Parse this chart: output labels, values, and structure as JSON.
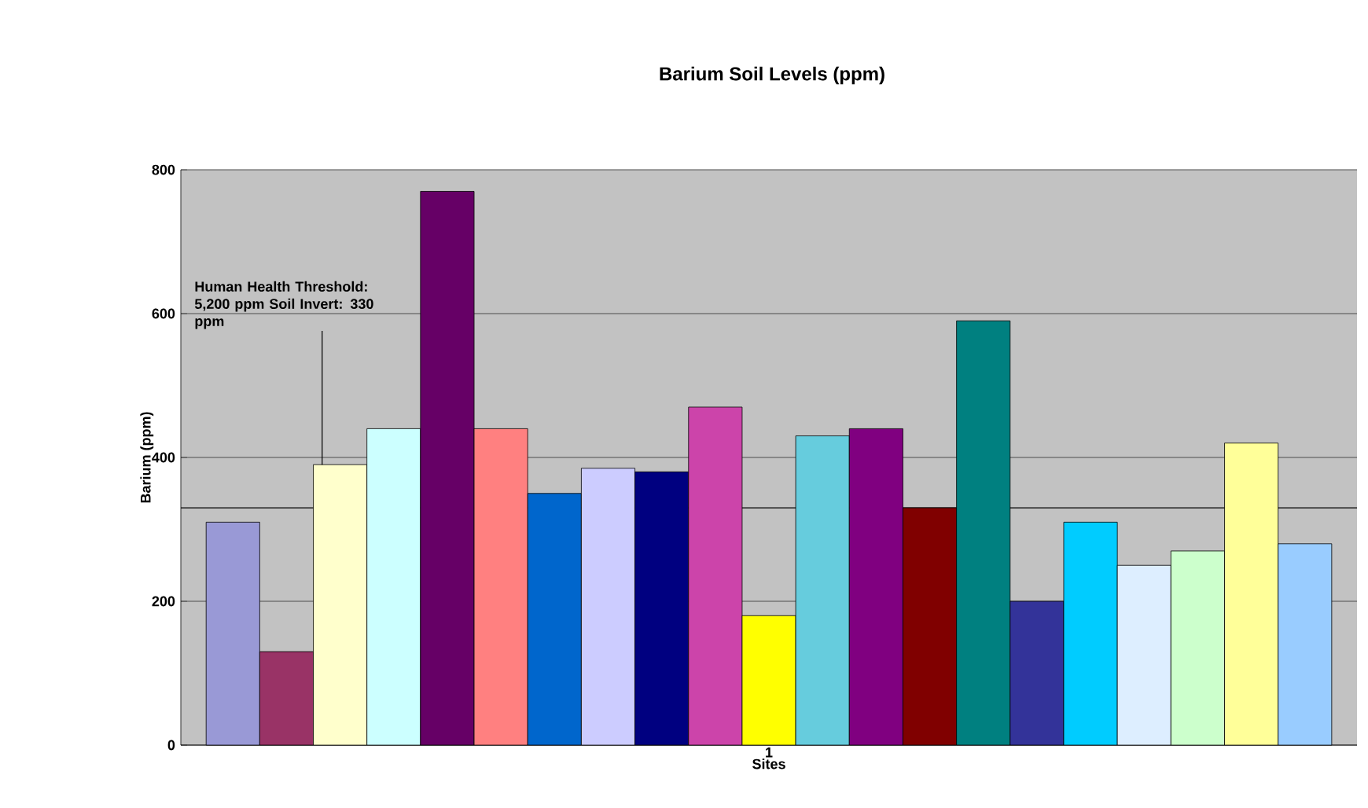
{
  "chart_data": {
    "type": "bar",
    "title": "Barium Soil Levels (ppm)",
    "xlabel": "Sites",
    "ylabel": "Barium (ppm)",
    "categories": [
      "1"
    ],
    "series": [
      {
        "color": "#9999d6",
        "values": [
          310
        ]
      },
      {
        "color": "#993366",
        "values": [
          130
        ]
      },
      {
        "color": "#ffffcc",
        "values": [
          390
        ]
      },
      {
        "color": "#ccffff",
        "values": [
          440
        ]
      },
      {
        "color": "#660066",
        "values": [
          770
        ]
      },
      {
        "color": "#ff8080",
        "values": [
          440
        ]
      },
      {
        "color": "#0066cc",
        "values": [
          350
        ]
      },
      {
        "color": "#ccccff",
        "values": [
          385
        ]
      },
      {
        "color": "#000080",
        "values": [
          380
        ]
      },
      {
        "color": "#cc44aa",
        "values": [
          470
        ]
      },
      {
        "color": "#ffff00",
        "values": [
          180
        ]
      },
      {
        "color": "#66ccdd",
        "values": [
          430
        ]
      },
      {
        "color": "#800080",
        "values": [
          440
        ]
      },
      {
        "color": "#800000",
        "values": [
          330
        ]
      },
      {
        "color": "#008080",
        "values": [
          590
        ]
      },
      {
        "color": "#333399",
        "values": [
          200
        ]
      },
      {
        "color": "#00ccff",
        "values": [
          310
        ]
      },
      {
        "color": "#ddeeff",
        "values": [
          250
        ]
      },
      {
        "color": "#ccffcc",
        "values": [
          270
        ]
      },
      {
        "color": "#ffff99",
        "values": [
          420
        ]
      },
      {
        "color": "#99ccff",
        "values": [
          280
        ]
      }
    ],
    "ylim": [
      0,
      800
    ],
    "yticks": [
      0,
      200,
      400,
      600,
      800
    ],
    "grid": "y",
    "ref_lines": [
      {
        "axis": "y",
        "value": 330,
        "label": "Human Health Threshold: 5,200 ppm Soil Invert: 330 ppm"
      }
    ]
  }
}
